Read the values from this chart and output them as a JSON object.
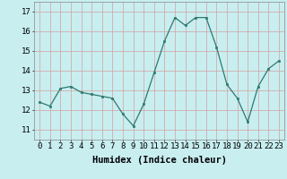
{
  "x": [
    0,
    1,
    2,
    3,
    4,
    5,
    6,
    7,
    8,
    9,
    10,
    11,
    12,
    13,
    14,
    15,
    16,
    17,
    18,
    19,
    20,
    21,
    22,
    23
  ],
  "y": [
    12.4,
    12.2,
    13.1,
    13.2,
    12.9,
    12.8,
    12.7,
    12.6,
    11.8,
    11.2,
    12.3,
    13.9,
    15.5,
    16.7,
    16.3,
    16.7,
    16.7,
    15.2,
    13.3,
    12.6,
    11.4,
    13.2,
    14.1,
    14.5
  ],
  "line_color": "#2d7a70",
  "marker_color": "#2d7a70",
  "bg_color": "#c8eef0",
  "grid_color": "#d4a0a0",
  "xlabel": "Humidex (Indice chaleur)",
  "ylim": [
    10.5,
    17.5
  ],
  "xlim": [
    -0.5,
    23.5
  ],
  "yticks": [
    11,
    12,
    13,
    14,
    15,
    16,
    17
  ],
  "xticks": [
    0,
    1,
    2,
    3,
    4,
    5,
    6,
    7,
    8,
    9,
    10,
    11,
    12,
    13,
    14,
    15,
    16,
    17,
    18,
    19,
    20,
    21,
    22,
    23
  ],
  "xlabel_fontsize": 7.5,
  "tick_fontsize": 6.5
}
